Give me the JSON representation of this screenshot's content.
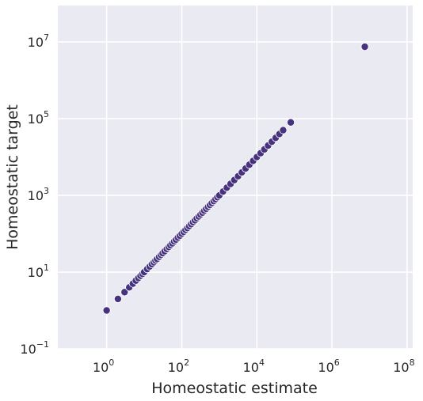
{
  "chart_data": {
    "type": "scatter",
    "xlabel": "Homeostatic estimate",
    "ylabel": "Homeostatic target",
    "xscale": "log",
    "yscale": "log",
    "xlim_exp": [
      -1.3,
      8.15
    ],
    "ylim_exp": [
      -1,
      7.95
    ],
    "x_ticks": [
      {
        "base": "10",
        "exp": "0"
      },
      {
        "base": "10",
        "exp": "2"
      },
      {
        "base": "10",
        "exp": "4"
      },
      {
        "base": "10",
        "exp": "6"
      },
      {
        "base": "10",
        "exp": "8"
      }
    ],
    "y_ticks": [
      {
        "base": "10",
        "exp": "−1"
      },
      {
        "base": "10",
        "exp": "1"
      },
      {
        "base": "10",
        "exp": "3"
      },
      {
        "base": "10",
        "exp": "5"
      },
      {
        "base": "10",
        "exp": "7"
      }
    ],
    "grid": true,
    "background_color": "#eaeaf2",
    "point_color": "#46327e",
    "x": [
      1,
      2,
      3,
      4,
      5,
      6,
      7,
      8,
      9,
      10,
      12,
      14,
      16,
      18,
      20,
      22,
      25,
      28,
      31,
      35,
      40,
      45,
      50,
      56,
      63,
      70,
      79,
      89,
      100,
      112,
      126,
      141,
      158,
      178,
      200,
      224,
      251,
      282,
      316,
      355,
      398,
      447,
      501,
      562,
      631,
      708,
      794,
      891,
      1000,
      1259,
      1585,
      1995,
      2512,
      3162,
      3981,
      5012,
      6310,
      7943,
      10000,
      12589,
      15849,
      19953,
      25119,
      31623,
      39811,
      50119,
      80000,
      7500000
    ],
    "y": [
      1,
      2,
      3,
      4,
      5,
      6,
      7,
      8,
      9,
      10,
      12,
      14,
      16,
      18,
      20,
      22,
      25,
      28,
      31,
      35,
      40,
      45,
      50,
      56,
      63,
      70,
      79,
      89,
      100,
      112,
      126,
      141,
      158,
      178,
      200,
      224,
      251,
      282,
      316,
      355,
      398,
      447,
      501,
      562,
      631,
      708,
      794,
      891,
      1000,
      1259,
      1585,
      1995,
      2512,
      3162,
      3981,
      5012,
      6310,
      7943,
      10000,
      12589,
      15849,
      19953,
      25119,
      31623,
      39811,
      50119,
      80000,
      7500000
    ]
  }
}
